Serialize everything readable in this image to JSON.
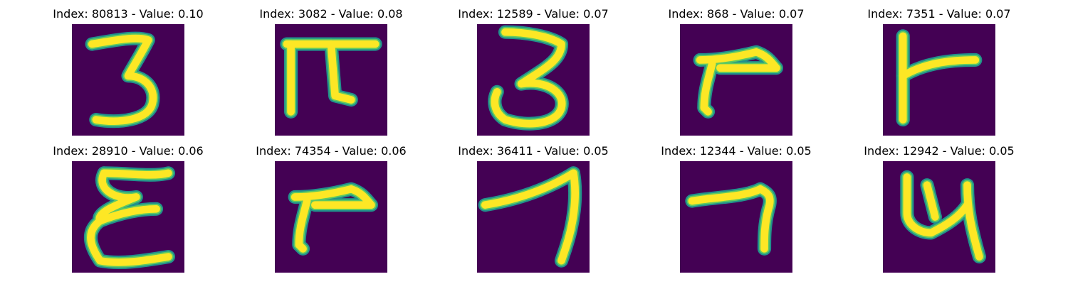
{
  "figure": {
    "colormap": "viridis",
    "background_color": "#440154",
    "stroke_color": "#fde725",
    "panels": [
      {
        "title": "Index: 80813 - Value: 0.10",
        "glyph": "three"
      },
      {
        "title": "Index: 3082 - Value: 0.08",
        "glyph": "pi"
      },
      {
        "title": "Index: 12589 - Value: 0.07",
        "glyph": "three-round"
      },
      {
        "title": "Index: 868 - Value: 0.07",
        "glyph": "r-shape"
      },
      {
        "title": "Index: 7351 - Value: 0.07",
        "glyph": "r-vertical"
      },
      {
        "title": "Index: 28910 - Value: 0.06",
        "glyph": "epsilon"
      },
      {
        "title": "Index: 74354 - Value: 0.06",
        "glyph": "r-shape"
      },
      {
        "title": "Index: 36411 - Value: 0.05",
        "glyph": "seven"
      },
      {
        "title": "Index: 12344 - Value: 0.05",
        "glyph": "seven-curved"
      },
      {
        "title": "Index: 12942 - Value: 0.05",
        "glyph": "u-shape"
      }
    ]
  }
}
